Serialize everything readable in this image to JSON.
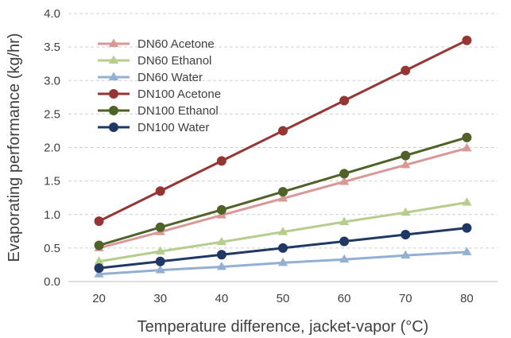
{
  "chart_data": {
    "type": "line",
    "title": "",
    "xlabel": "Temperature difference, jacket-vapor (°C)",
    "ylabel": "Evaporating performance (kg/hr)",
    "x": [
      20,
      30,
      40,
      50,
      60,
      70,
      80
    ],
    "xlim": [
      15,
      85
    ],
    "ylim": [
      0,
      4
    ],
    "yticks": [
      "0.0",
      "0.5",
      "1.0",
      "1.5",
      "2.0",
      "2.5",
      "3.0",
      "3.5",
      "4.0"
    ],
    "xticks": [
      "20",
      "30",
      "40",
      "50",
      "60",
      "70",
      "80"
    ],
    "grid": "horizontal dashed",
    "legend_position": "top-left",
    "series": [
      {
        "name": "DN60 Acetone",
        "values": [
          0.5,
          0.74,
          0.99,
          1.24,
          1.49,
          1.74,
          1.99
        ],
        "color": "#d99795",
        "marker": "triangle"
      },
      {
        "name": "DN60 Ethanol",
        "values": [
          0.3,
          0.45,
          0.59,
          0.74,
          0.89,
          1.03,
          1.18
        ],
        "color": "#b6cd8c",
        "marker": "triangle"
      },
      {
        "name": "DN60 Water",
        "values": [
          0.11,
          0.17,
          0.22,
          0.28,
          0.33,
          0.39,
          0.44
        ],
        "color": "#94afd4",
        "marker": "triangle"
      },
      {
        "name": "DN100 Acetone",
        "values": [
          0.9,
          1.35,
          1.8,
          2.25,
          2.7,
          3.15,
          3.6
        ],
        "color": "#963634",
        "marker": "circle"
      },
      {
        "name": "DN100 Ethanol",
        "values": [
          0.54,
          0.81,
          1.07,
          1.34,
          1.61,
          1.88,
          2.15
        ],
        "color": "#4f6228",
        "marker": "circle"
      },
      {
        "name": "DN100 Water",
        "values": [
          0.2,
          0.3,
          0.4,
          0.5,
          0.6,
          0.7,
          0.8
        ],
        "color": "#1f3864",
        "marker": "circle"
      }
    ]
  }
}
